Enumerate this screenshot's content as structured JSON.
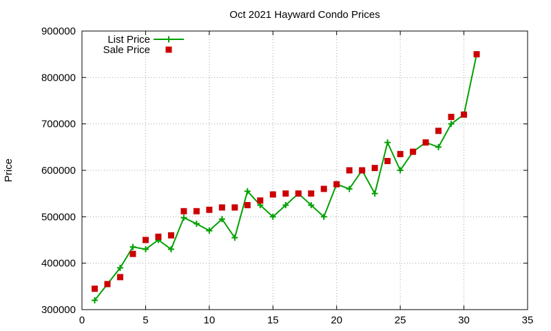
{
  "chart_data": {
    "type": "line",
    "title": "Oct 2021 Hayward Condo Prices",
    "xlabel": "",
    "ylabel": "Price",
    "xlim": [
      0,
      35
    ],
    "ylim": [
      300000,
      900000
    ],
    "xticks": [
      0,
      5,
      10,
      15,
      20,
      25,
      30,
      35
    ],
    "yticks": [
      300000,
      400000,
      500000,
      600000,
      700000,
      800000,
      900000
    ],
    "grid": true,
    "legend_position": "top-left",
    "series": [
      {
        "name": "List Price",
        "style": "line+cross",
        "color": "#00a000",
        "x": [
          1,
          2,
          3,
          4,
          5,
          6,
          7,
          8,
          9,
          10,
          11,
          12,
          13,
          14,
          15,
          16,
          17,
          18,
          19,
          20,
          21,
          22,
          23,
          24,
          25,
          26,
          27,
          28,
          29,
          30,
          31
        ],
        "y": [
          320000,
          355000,
          390000,
          435000,
          430000,
          450000,
          430000,
          498000,
          485000,
          470000,
          495000,
          455000,
          555000,
          525000,
          500000,
          525000,
          550000,
          525000,
          500000,
          570000,
          560000,
          600000,
          550000,
          660000,
          600000,
          640000,
          660000,
          650000,
          700000,
          720000,
          850000
        ]
      },
      {
        "name": "Sale Price",
        "style": "square",
        "color": "#cc0000",
        "x": [
          1,
          2,
          3,
          4,
          5,
          6,
          7,
          8,
          9,
          10,
          11,
          12,
          13,
          14,
          15,
          16,
          17,
          18,
          19,
          20,
          21,
          22,
          23,
          24,
          25,
          26,
          27,
          28,
          29,
          30,
          31
        ],
        "y": [
          345000,
          355000,
          370000,
          420000,
          450000,
          457000,
          460000,
          512000,
          512000,
          515000,
          520000,
          520000,
          525000,
          535000,
          548000,
          550000,
          550000,
          550000,
          560000,
          570000,
          600000,
          600000,
          605000,
          620000,
          635000,
          640000,
          660000,
          685000,
          715000,
          720000,
          850000
        ]
      }
    ]
  }
}
